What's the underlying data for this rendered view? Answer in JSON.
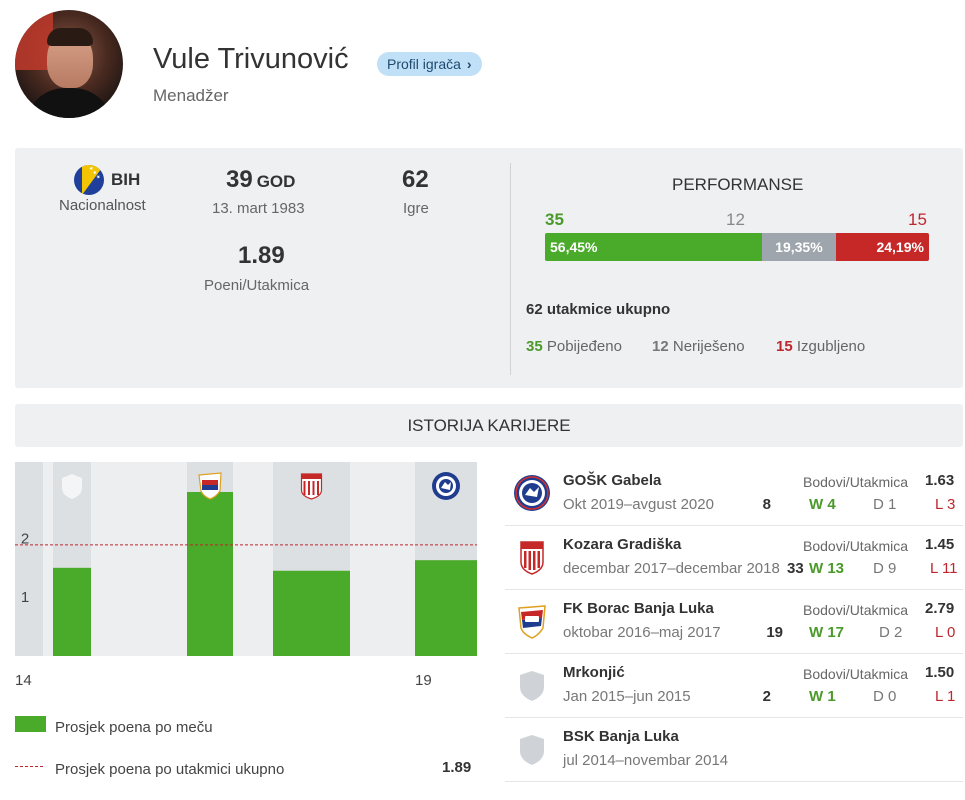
{
  "header": {
    "name": "Vule Trivunović",
    "role": "Menadžer",
    "profile_button": "Profil igrača",
    "profile_chevron": "›"
  },
  "stats": {
    "nationality_code": "BIH",
    "nationality_label": "Nacionalnost",
    "age": "39",
    "age_unit": "GOD",
    "birth_date": "13. mart 1983",
    "games": "62",
    "games_label": "Igre",
    "points_per_match": "1.89",
    "points_per_match_label": "Poeni/Utakmica"
  },
  "performance": {
    "title": "PERFORMANSE",
    "wins": "35",
    "draws": "12",
    "losses": "15",
    "win_pct": "56,45%",
    "draw_pct": "19,35%",
    "loss_pct": "24,19%",
    "win_fraction": 0.5645,
    "draw_fraction": 0.1935,
    "loss_fraction": 0.2419,
    "total_text": "62 utakmice ukupno",
    "legend": {
      "win_count": "35",
      "win_label": "Pobijeđeno",
      "draw_count": "12",
      "draw_label": "Neriješeno",
      "loss_count": "15",
      "loss_label": "Izgubljeno"
    },
    "colors": {
      "win": "#4aaa2a",
      "draw": "#9ea5ad",
      "loss": "#c62828"
    }
  },
  "career": {
    "title": "ISTORIJA KARIJERE",
    "legend_bar": "Prosjek poena po meču",
    "legend_line": "Prosjek poena po utakmici ukupno",
    "overall_avg": "1.89",
    "clubs": [
      {
        "name": "GOŠK Gabela",
        "period": "Okt 2019–avgust 2020",
        "games": "8",
        "ppm_label": "Bodovi/Utakmica",
        "ppm": "1.63",
        "w": "W 4",
        "d": "D 1",
        "l": "L 3",
        "logo": "gosk-crest-icon"
      },
      {
        "name": "Kozara Gradiška",
        "period": "decembar 2017–decembar 2018",
        "games": "33",
        "ppm_label": "Bodovi/Utakmica",
        "ppm": "1.45",
        "w": "W 13",
        "d": "D 9",
        "l": "L 11",
        "logo": "kozara-crest-icon"
      },
      {
        "name": "FK Borac Banja Luka",
        "period": "oktobar 2016–maj 2017",
        "games": "19",
        "ppm_label": "Bodovi/Utakmica",
        "ppm": "2.79",
        "w": "W 17",
        "d": "D 2",
        "l": "L 0",
        "logo": "borac-crest-icon"
      },
      {
        "name": "Mrkonjić",
        "period": "Jan 2015–jun 2015",
        "games": "2",
        "ppm_label": "Bodovi/Utakmica",
        "ppm": "1.50",
        "w": "W 1",
        "d": "D 0",
        "l": "L 1",
        "logo": "generic-shield-icon"
      },
      {
        "name": "BSK Banja Luka",
        "period": "jul 2014–novembar 2014",
        "logo": "generic-shield-icon"
      }
    ]
  },
  "chart_data": {
    "type": "bar",
    "ylim": [
      0,
      3.3
    ],
    "y_ticks": [
      "1",
      "2"
    ],
    "x_tick_labels": [
      "14",
      "19"
    ],
    "reference_line": 1.89,
    "bars": [
      {
        "club": "Mrkonjić",
        "value": 1.5,
        "games": 2
      },
      {
        "club": "FK Borac Banja Luka",
        "value": 2.79,
        "games": 19
      },
      {
        "club": "Kozara Gradiška",
        "value": 1.45,
        "games": 33
      },
      {
        "club": "GOŠK Gabela",
        "value": 1.63,
        "games": 8
      }
    ],
    "colors": {
      "bar": "#4aaa2a",
      "column_bg": "#dde0e3",
      "line": "#c0262d"
    }
  }
}
